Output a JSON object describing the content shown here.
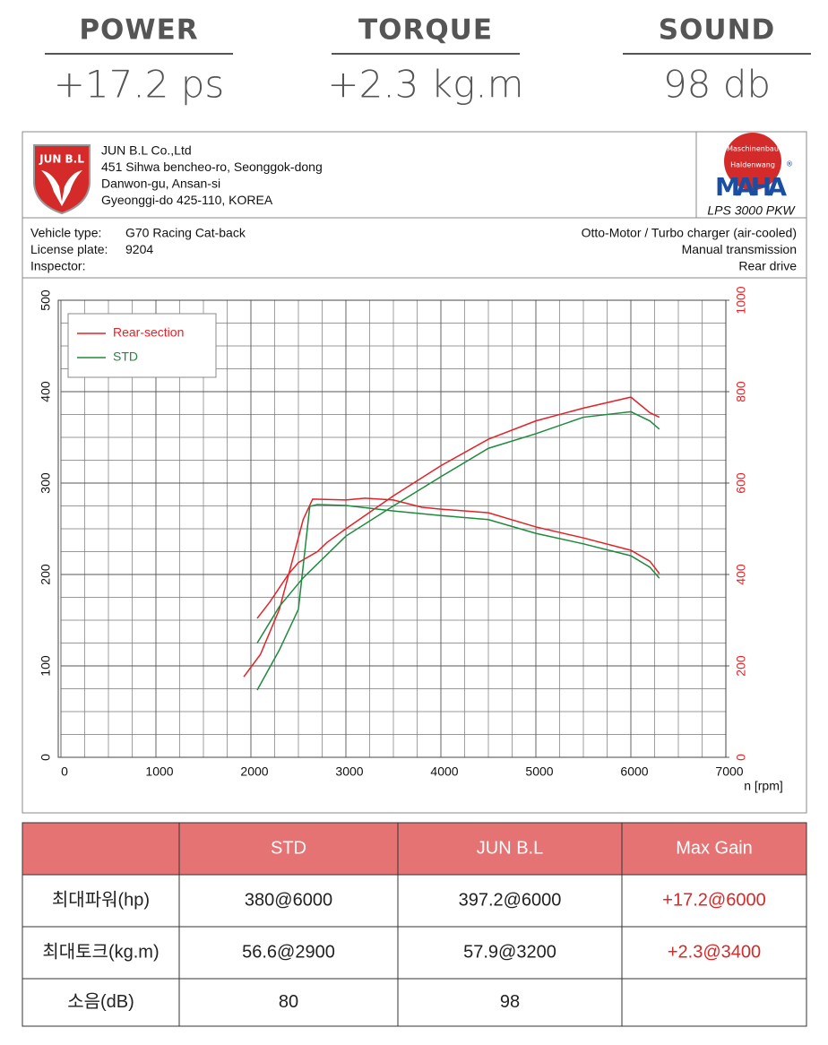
{
  "stats": [
    {
      "label": "POWER",
      "value": "+17.2 ps"
    },
    {
      "label": "TORQUE",
      "value": "+2.3 kg.m"
    },
    {
      "label": "SOUND",
      "value": "98 db"
    }
  ],
  "report": {
    "logo": "JUN B.L",
    "company": [
      "JUN B.L Co.,Ltd",
      "451 Sihwa bencheo-ro, Seonggok-dong",
      "Danwon-gu, Ansan-si",
      "Gyeonggi-do 425-110, KOREA"
    ],
    "maha": {
      "arc_top": "Maschinenbau",
      "arc_bottom": "Haldenwang",
      "mark": "®",
      "name": "MAHA",
      "model": "LPS 3000 PKW"
    },
    "vehicle_left": [
      {
        "label": "Vehicle type:",
        "value": "G70 Racing Cat-back"
      },
      {
        "label": "License plate:",
        "value": "9204"
      },
      {
        "label": "Inspector:"
      }
    ],
    "vehicle_right": [
      "Otto-Motor / Turbo charger (air-cooled)",
      "Manual transmission",
      "Rear drive"
    ]
  },
  "chart_data": {
    "type": "line",
    "xlim": [
      0,
      7000
    ],
    "xticks": [
      0,
      1000,
      2000,
      3000,
      4000,
      5000,
      6000,
      7000
    ],
    "xlabel": "n [rpm]",
    "ylim": [
      0,
      500
    ],
    "yticks": [
      0,
      100,
      200,
      300,
      400,
      500
    ],
    "y2lim": [
      0,
      1000
    ],
    "y2ticks": [
      0,
      200,
      400,
      600,
      800,
      1000
    ],
    "y2color": "#e32227",
    "grid": true,
    "legend": "upper left",
    "series": [
      {
        "name": "Rear-section",
        "color": "#e32227",
        "curves": [
          {
            "x": [
              2066,
              2200,
              2400,
              2500,
              2700,
              2800,
              3000,
              3500,
              4000,
              4500,
              5000,
              5500,
              6000,
              6200,
              6300
            ],
            "values": [
              152,
              170,
              201,
              213,
              225,
              235,
              250,
              286,
              319,
              348,
              368,
              382,
              394,
              377,
              372
            ]
          },
          {
            "axis": "y2",
            "x": [
              1925,
              2100,
              2300,
              2400,
              2550,
              2650,
              3000,
              3200,
              3500,
              3800,
              4000,
              4500,
              5000,
              5500,
              6000,
              6200,
              6300
            ],
            "values": [
              176,
              225,
              324,
              402,
              520,
              565,
              563,
              567,
              563,
              547,
              543,
              535,
              504,
              480,
              453,
              429,
              402
            ]
          }
        ]
      },
      {
        "name": "STD",
        "color": "#1e8a3c",
        "curves": [
          {
            "x": [
              2066,
              2300,
              2547,
              3000,
              3500,
              4000,
              4500,
              5000,
              5500,
              6000,
              6200,
              6300
            ],
            "values": [
              125,
              165,
              196,
              242,
              275,
              307,
              338,
              354,
              372,
              378,
              368,
              359
            ]
          },
          {
            "axis": "y2",
            "x": [
              2066,
              2300,
              2500,
              2620,
              2700,
              3000,
              3500,
              4000,
              4500,
              5000,
              5500,
              6000,
              6200,
              6300
            ],
            "values": [
              147,
              235,
              324,
              549,
              553,
              551,
              539,
              529,
              520,
              490,
              467,
              441,
              416,
              392
            ]
          }
        ]
      }
    ]
  },
  "table": {
    "columns": [
      "STD",
      "JUN B.L",
      "Max Gain"
    ],
    "rows": [
      [
        "최대파워(hp)",
        "380@6000",
        "397.2@6000",
        "+17.2@6000"
      ],
      [
        "최대토크(kg.m)",
        "56.6@2900",
        "57.9@3200",
        "+2.3@3400"
      ],
      [
        "소음(dB)",
        "80",
        "98"
      ]
    ]
  }
}
